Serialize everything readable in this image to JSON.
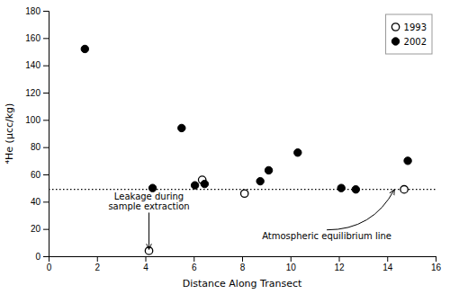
{
  "chart_data": {
    "type": "scatter",
    "xlabel": "Distance Along Transect",
    "ylabel": "⁴He (µcc/kg)",
    "series": [
      {
        "name": "1993",
        "x": [
          4.15,
          6.35,
          8.1,
          14.7
        ],
        "values": [
          4,
          56,
          46,
          49
        ],
        "color": "#000000",
        "marker": "open-circle"
      },
      {
        "name": "2002",
        "x": [
          1.5,
          4.3,
          5.5,
          6.05,
          6.45,
          8.75,
          9.1,
          10.3,
          12.1,
          12.7,
          14.85
        ],
        "values": [
          152,
          50,
          94,
          52,
          53,
          55,
          63,
          76,
          50,
          49,
          70
        ],
        "color": "#000000",
        "marker": "circle"
      }
    ],
    "reference_lines": [
      {
        "y": 49,
        "line_style": "dotted",
        "color": "#000000"
      }
    ],
    "annotations": [
      {
        "text": [
          "Leakage during",
          "sample extraction"
        ],
        "x": 4.15,
        "y": 32,
        "arrow_x": 4.15,
        "arrow_y": 5
      },
      {
        "text": [
          "Atmospheric equilibrium line"
        ],
        "x": 11.5,
        "y": 18,
        "arrow_x": 14.3,
        "arrow_y": 49
      }
    ],
    "xlim": [
      0,
      16
    ],
    "ylim": [
      0,
      180
    ],
    "xticks": [
      0,
      2,
      4,
      6,
      8,
      10,
      12,
      14,
      16
    ],
    "yticks": [
      0,
      20,
      40,
      60,
      80,
      100,
      120,
      140,
      160,
      180
    ],
    "grid": false,
    "legend": "upper right"
  }
}
